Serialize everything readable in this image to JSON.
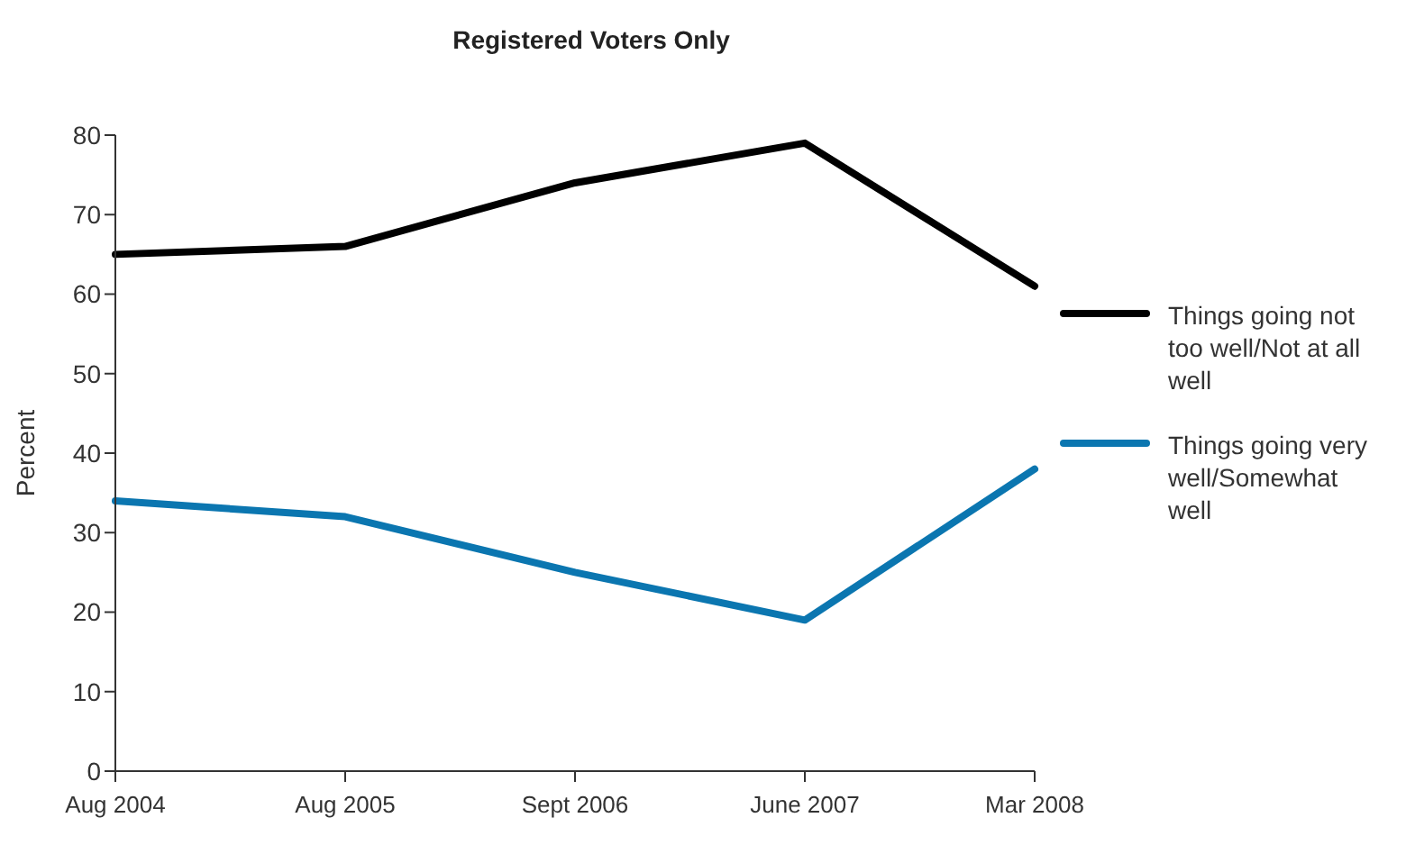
{
  "chart_data": {
    "type": "line",
    "title": "Registered Voters Only",
    "ylabel": "Percent",
    "categories": [
      "Aug 2004",
      "Aug 2005",
      "Sept 2006",
      "June 2007",
      "Mar 2008"
    ],
    "series": [
      {
        "name": "Things going not too well/Not at all well",
        "color": "#000000",
        "values": [
          65,
          66,
          74,
          79,
          61
        ]
      },
      {
        "name": "Things going very well/Somewhat well",
        "color": "#0b76b0",
        "values": [
          34,
          32,
          25,
          19,
          38
        ]
      }
    ],
    "ylim": [
      0,
      80
    ],
    "yticks": [
      0,
      10,
      20,
      30,
      40,
      50,
      60,
      70,
      80
    ],
    "grid": false,
    "legend": "right",
    "marker": "none",
    "line_style": "solid"
  }
}
